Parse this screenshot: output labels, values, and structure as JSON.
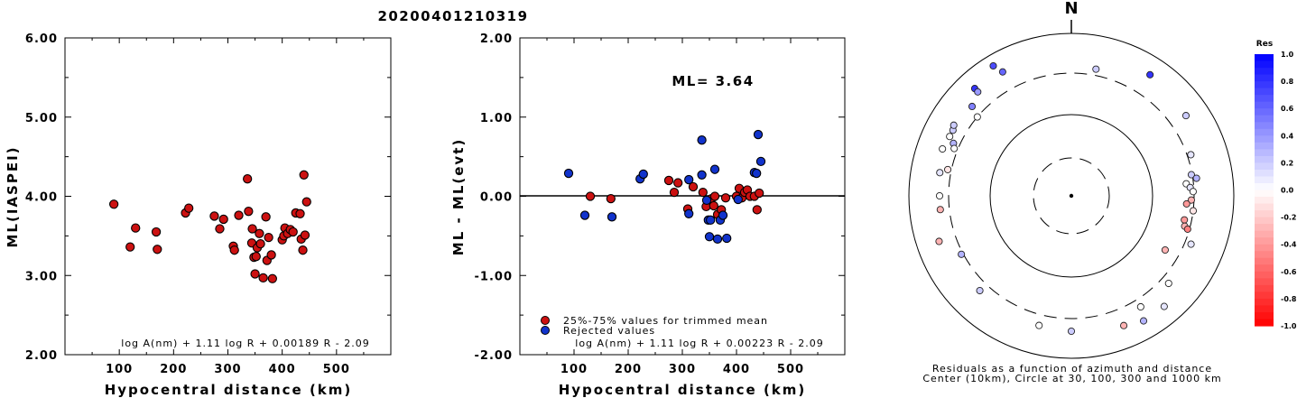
{
  "title": "20200401210319",
  "chart_data": [
    {
      "type": "scatter",
      "xlabel": "Hypocentral distance (km)",
      "ylabel": "ML(IASPEI)",
      "xlim": [
        0,
        600
      ],
      "ylim": [
        2.0,
        6.0
      ],
      "xticks": [
        "100",
        "200",
        "300",
        "400",
        "500"
      ],
      "yticks": [
        "2.00",
        "3.00",
        "4.00",
        "5.00",
        "6.00"
      ],
      "formula": "log A(nm) + 1.11 log R + 0.00189 R - 2.09",
      "series": [
        {
          "color": "#cc1111",
          "points": [
            [
              90,
              3.9
            ],
            [
              120,
              3.36
            ],
            [
              130,
              3.6
            ],
            [
              168,
              3.55
            ],
            [
              170,
              3.33
            ],
            [
              222,
              3.79
            ],
            [
              228,
              3.85
            ],
            [
              275,
              3.75
            ],
            [
              285,
              3.59
            ],
            [
              292,
              3.71
            ],
            [
              310,
              3.37
            ],
            [
              312,
              3.32
            ],
            [
              320,
              3.76
            ],
            [
              336,
              4.22
            ],
            [
              338,
              3.81
            ],
            [
              344,
              3.41
            ],
            [
              345,
              3.59
            ],
            [
              348,
              3.23
            ],
            [
              350,
              3.02
            ],
            [
              352,
              3.24
            ],
            [
              354,
              3.35
            ],
            [
              358,
              3.53
            ],
            [
              360,
              3.4
            ],
            [
              365,
              2.97
            ],
            [
              370,
              3.74
            ],
            [
              372,
              3.19
            ],
            [
              375,
              3.48
            ],
            [
              380,
              3.26
            ],
            [
              382,
              2.96
            ],
            [
              400,
              3.45
            ],
            [
              403,
              3.5
            ],
            [
              405,
              3.6
            ],
            [
              410,
              3.53
            ],
            [
              415,
              3.58
            ],
            [
              420,
              3.55
            ],
            [
              425,
              3.79
            ],
            [
              433,
              3.78
            ],
            [
              435,
              3.46
            ],
            [
              438,
              3.32
            ],
            [
              440,
              4.27
            ],
            [
              442,
              3.51
            ],
            [
              445,
              3.93
            ]
          ]
        }
      ]
    },
    {
      "type": "scatter",
      "xlabel": "Hypocentral distance (km)",
      "ylabel": "ML - ML(evt)",
      "xlim": [
        0,
        600
      ],
      "ylim": [
        -2.0,
        2.0
      ],
      "xticks": [
        "100",
        "200",
        "300",
        "400",
        "500"
      ],
      "yticks": [
        "-2.00",
        "-1.00",
        "0.00",
        "1.00",
        "2.00"
      ],
      "annotation": "ML= 3.64",
      "formula": "log A(nm) + 1.11 log R + 0.00223 R - 2.09",
      "series": [
        {
          "name": "25%-75% values for trimmed mean",
          "color": "#cc1111",
          "points": [
            [
              130,
              0.0
            ],
            [
              168,
              -0.03
            ],
            [
              275,
              0.2
            ],
            [
              285,
              0.05
            ],
            [
              292,
              0.17
            ],
            [
              310,
              -0.16
            ],
            [
              320,
              0.12
            ],
            [
              338,
              0.05
            ],
            [
              344,
              -0.13
            ],
            [
              354,
              -0.03
            ],
            [
              358,
              -0.12
            ],
            [
              360,
              0.0
            ],
            [
              365,
              -0.23
            ],
            [
              372,
              -0.17
            ],
            [
              380,
              -0.02
            ],
            [
              400,
              0.0
            ],
            [
              405,
              0.1
            ],
            [
              410,
              -0.02
            ],
            [
              415,
              0.05
            ],
            [
              420,
              0.08
            ],
            [
              425,
              0.0
            ],
            [
              433,
              0.0
            ],
            [
              438,
              -0.17
            ],
            [
              442,
              0.04
            ]
          ]
        },
        {
          "name": "Rejected values",
          "color": "#1133cc",
          "points": [
            [
              90,
              0.29
            ],
            [
              120,
              -0.24
            ],
            [
              170,
              -0.26
            ],
            [
              222,
              0.22
            ],
            [
              228,
              0.28
            ],
            [
              312,
              0.21
            ],
            [
              312,
              -0.22
            ],
            [
              336,
              0.71
            ],
            [
              336,
              0.27
            ],
            [
              345,
              -0.05
            ],
            [
              348,
              -0.3
            ],
            [
              350,
              -0.51
            ],
            [
              352,
              -0.3
            ],
            [
              360,
              0.34
            ],
            [
              365,
              -0.54
            ],
            [
              370,
              -0.3
            ],
            [
              375,
              -0.24
            ],
            [
              382,
              -0.53
            ],
            [
              403,
              -0.04
            ],
            [
              433,
              0.3
            ],
            [
              437,
              0.29
            ],
            [
              440,
              0.78
            ],
            [
              445,
              0.44
            ]
          ]
        }
      ]
    },
    {
      "type": "polar",
      "north_label": "N",
      "caption_line1": "Residuals as a function of azimuth and distance",
      "caption_line2": "Center (10km), Circle at 30, 100, 300 and 1000 km",
      "colorbar_title": "Res",
      "colorbar_ticks": [
        "1.0",
        "0.8",
        "0.6",
        "0.4",
        "0.2",
        "0.0",
        "-0.2",
        "-0.4",
        "-0.6",
        "-0.8",
        "-1.0"
      ],
      "points": [
        [
          329,
          0.7
        ],
        [
          331,
          0.6
        ],
        [
          318,
          0.8
        ],
        [
          312,
          0.5
        ],
        [
          294,
          0.3
        ],
        [
          299,
          0.2
        ],
        [
          301,
          0.2
        ],
        [
          296,
          0.0
        ],
        [
          292,
          0.0
        ],
        [
          290,
          0.0
        ],
        [
          280,
          0.1
        ],
        [
          270,
          0.0
        ],
        [
          264,
          -0.3
        ],
        [
          282,
          -0.1
        ],
        [
          310,
          0.0
        ],
        [
          318,
          0.4
        ],
        [
          11,
          0.2
        ],
        [
          33,
          0.8
        ],
        [
          55,
          0.2
        ],
        [
          71,
          0.1
        ],
        [
          80,
          0.2
        ],
        [
          82,
          0.3
        ],
        [
          84,
          0.0
        ],
        [
          86,
          0.1
        ],
        [
          88,
          0.0
        ],
        [
          92,
          -0.3
        ],
        [
          94,
          -0.4
        ],
        [
          97,
          -0.1
        ],
        [
          102,
          -0.4
        ],
        [
          105,
          -0.3
        ],
        [
          106,
          -0.5
        ],
        [
          112,
          0.1
        ],
        [
          120,
          -0.3
        ],
        [
          132,
          0.0
        ],
        [
          140,
          0.1
        ],
        [
          148,
          0.0
        ],
        [
          150,
          0.3
        ],
        [
          158,
          -0.3
        ],
        [
          180,
          0.2
        ],
        [
          194,
          0.0
        ],
        [
          224,
          0.2
        ],
        [
          242,
          0.3
        ],
        [
          251,
          -0.3
        ]
      ]
    }
  ]
}
